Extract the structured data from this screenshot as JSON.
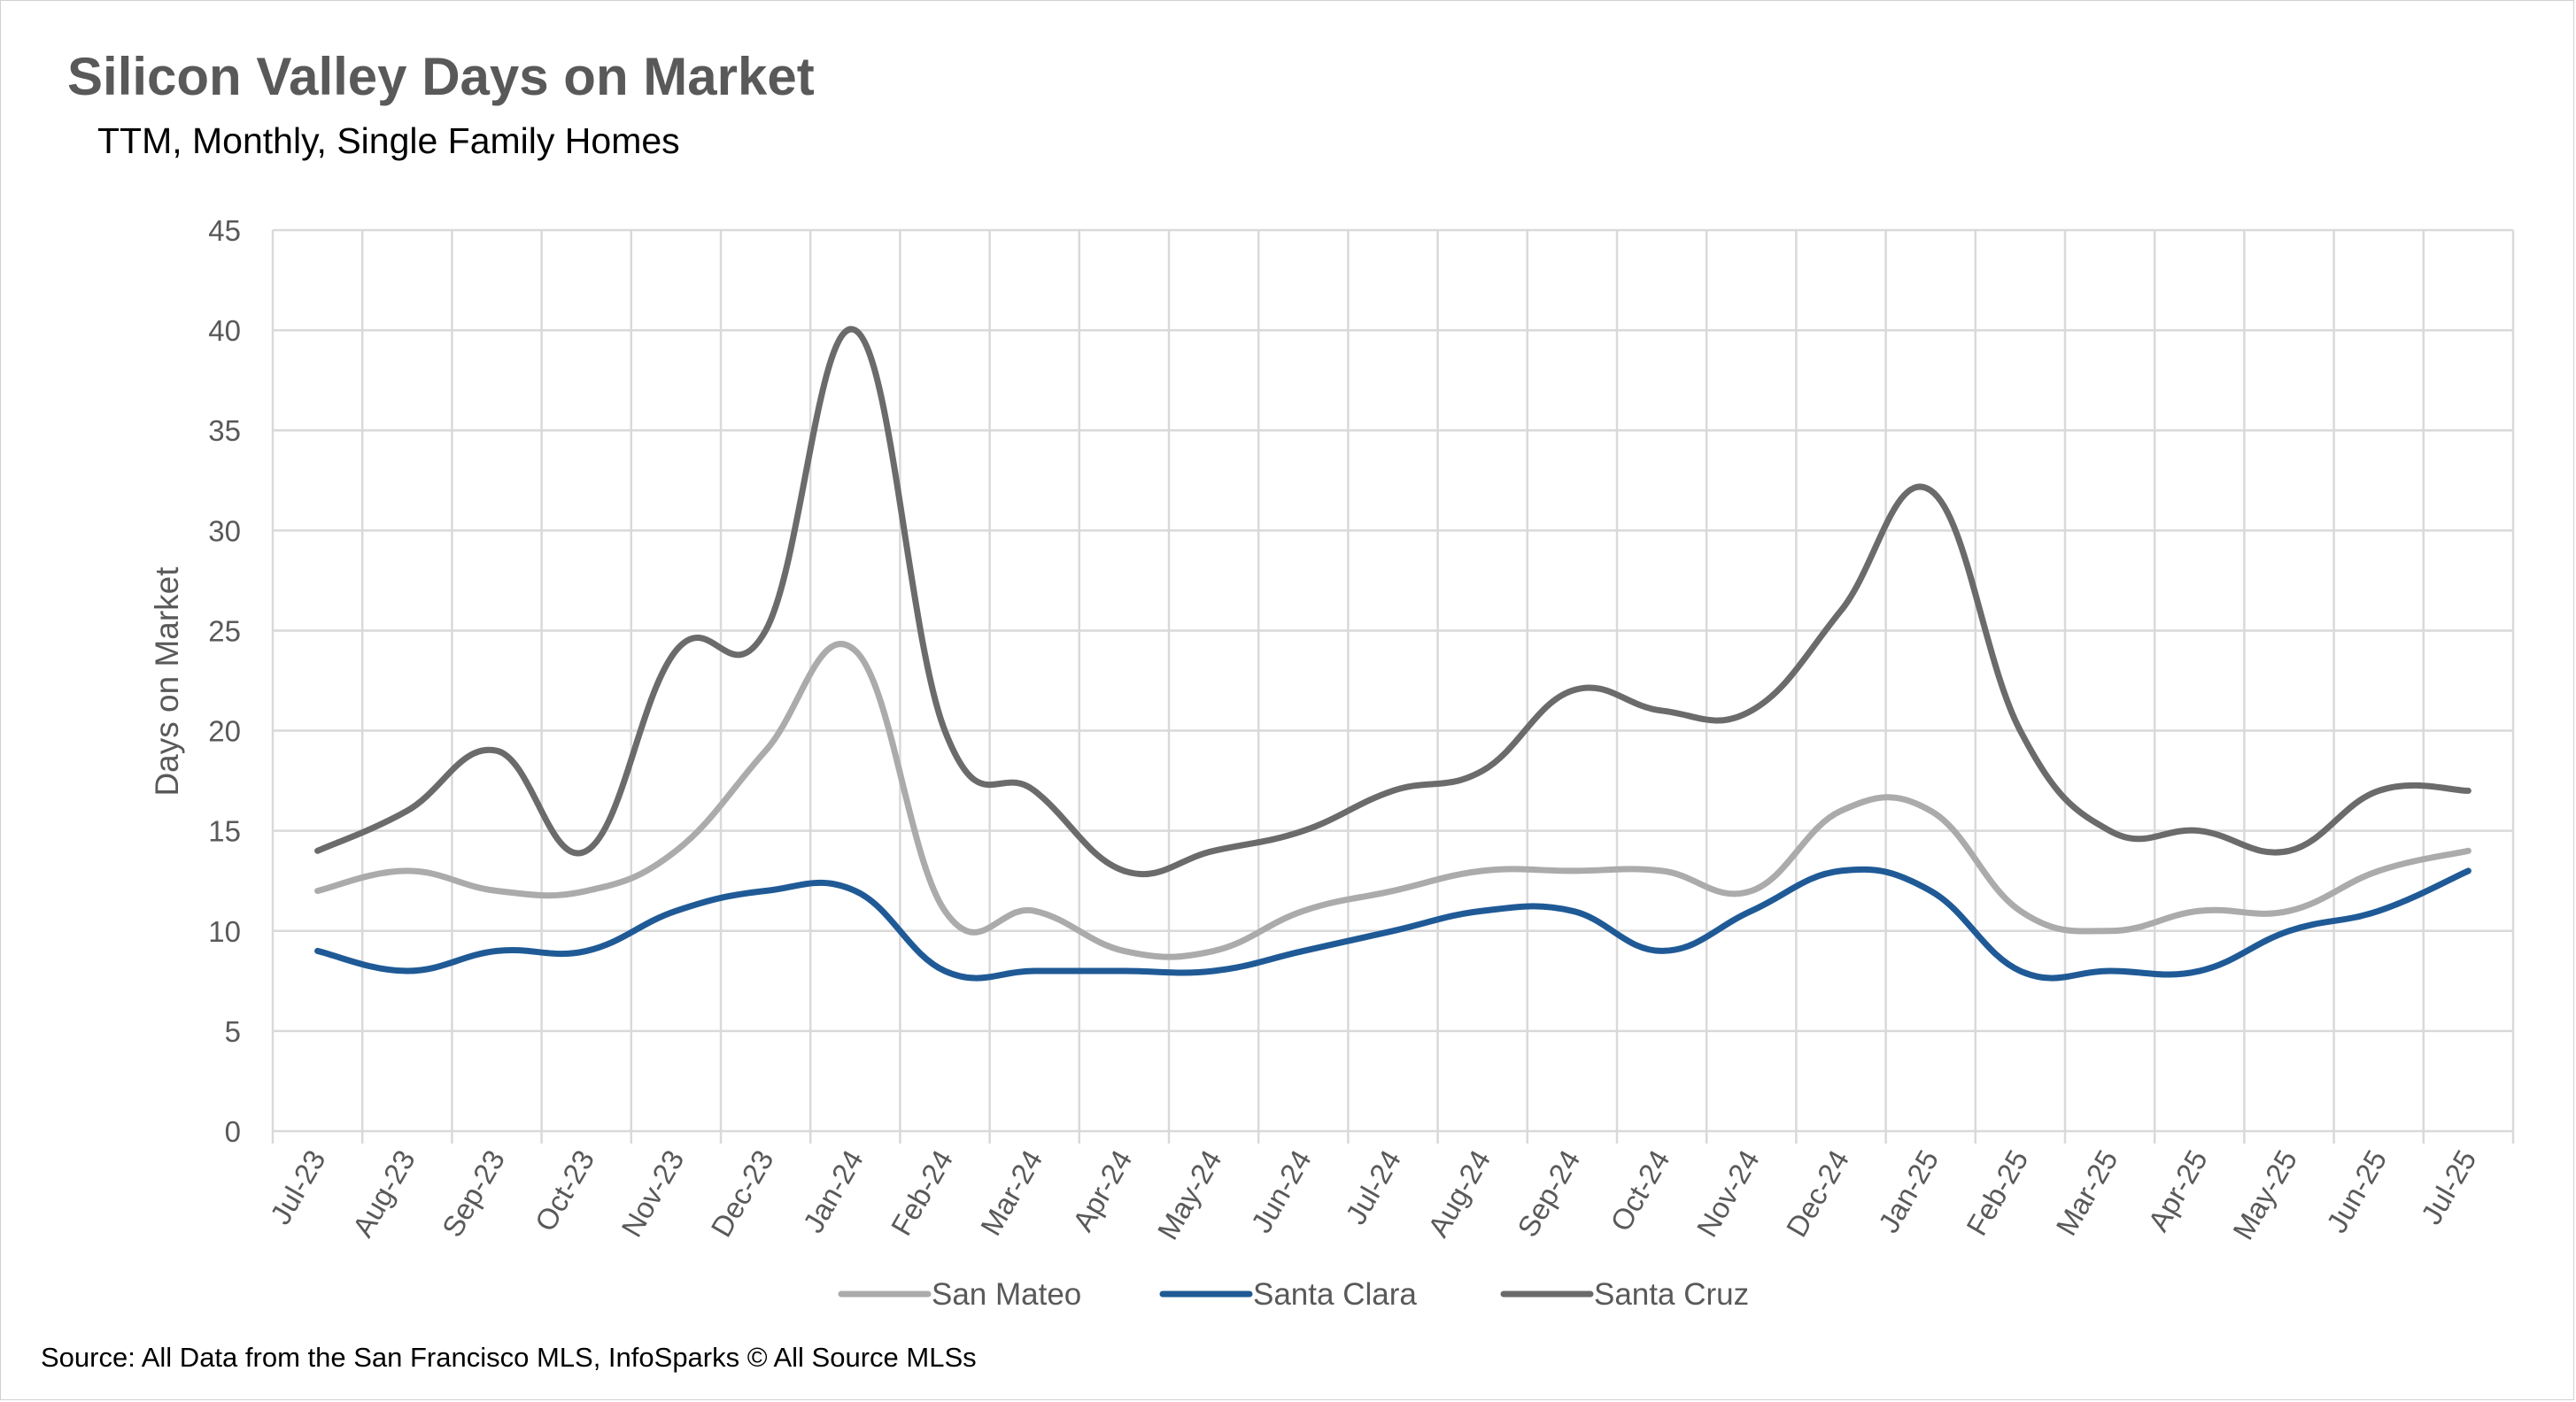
{
  "chart_data": {
    "type": "line",
    "title": "Silicon Valley Days on Market",
    "subtitle": "TTM, Monthly, Single Family Homes",
    "ylabel": "Days on Market",
    "xlabel": "",
    "ylim": [
      0,
      45
    ],
    "yticks": [
      0,
      5,
      10,
      15,
      20,
      25,
      30,
      35,
      40,
      45
    ],
    "grid": true,
    "legend_position": "bottom",
    "categories": [
      "Jul-23",
      "Aug-23",
      "Sep-23",
      "Oct-23",
      "Nov-23",
      "Dec-23",
      "Jan-24",
      "Feb-24",
      "Mar-24",
      "Apr-24",
      "May-24",
      "Jun-24",
      "Jul-24",
      "Aug-24",
      "Sep-24",
      "Oct-24",
      "Nov-24",
      "Dec-24",
      "Jan-25",
      "Feb-25",
      "Mar-25",
      "Apr-25",
      "May-25",
      "Jun-25",
      "Jul-25"
    ],
    "series": [
      {
        "name": "San Mateo",
        "color": "#ababab",
        "values": [
          12,
          13,
          12,
          12,
          14,
          19,
          24,
          11,
          11,
          9,
          9,
          11,
          12,
          13,
          13,
          13,
          12,
          16,
          16,
          11,
          10,
          11,
          11,
          13,
          14
        ]
      },
      {
        "name": "Santa Clara",
        "color": "#1f5a96",
        "values": [
          9,
          8,
          9,
          9,
          11,
          12,
          12,
          8,
          8,
          8,
          8,
          9,
          10,
          11,
          11,
          9,
          11,
          13,
          12,
          8,
          8,
          8,
          10,
          11,
          13
        ]
      },
      {
        "name": "Santa Cruz",
        "color": "#6b6b6b",
        "values": [
          14,
          16,
          19,
          14,
          24,
          25,
          40,
          20,
          17,
          13,
          14,
          15,
          17,
          18,
          22,
          21,
          21,
          26,
          32,
          20,
          15,
          15,
          14,
          17,
          17
        ]
      }
    ]
  },
  "source": "Source: All Data from the San Francisco MLS, InfoSparks © All Source MLSs"
}
